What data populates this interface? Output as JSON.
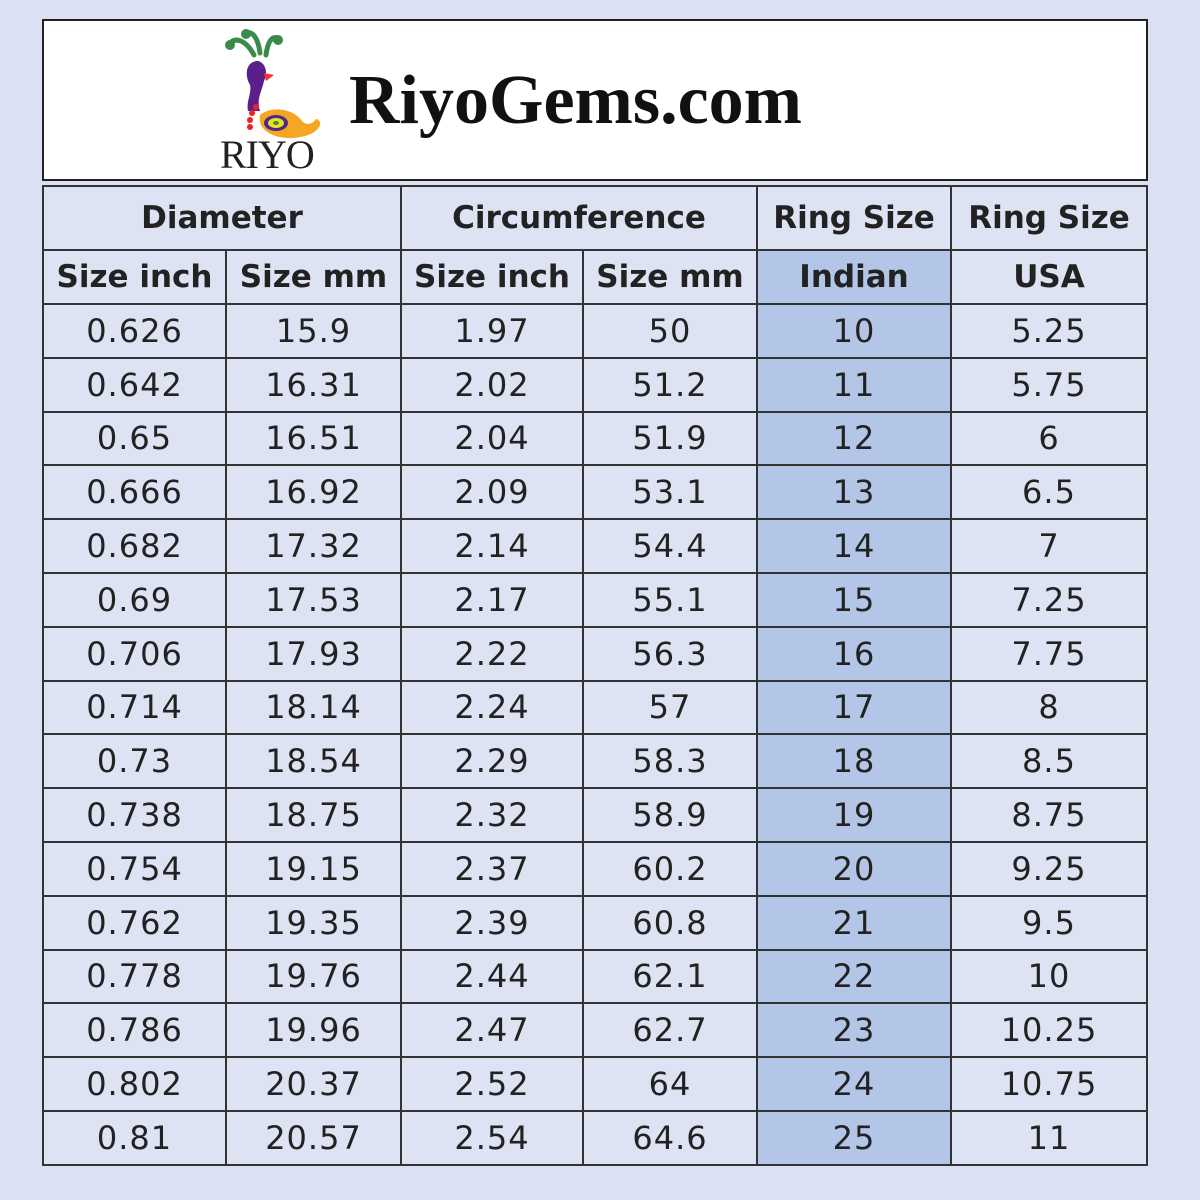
{
  "brand": {
    "site": "RiyoGems.com",
    "logo_text": "RIYO",
    "logo_mark": "®"
  },
  "colors": {
    "indian_column": "#b4c6e7",
    "cell_bg": "#dde3f3",
    "page_bg": "#dbe1f2"
  },
  "table": {
    "group_headers": [
      "Diameter",
      "Circumference",
      "Ring Size",
      "Ring Size"
    ],
    "sub_headers": [
      "Size inch",
      "Size mm",
      "Size inch",
      "Size mm",
      "Indian",
      "USA"
    ],
    "rows": [
      [
        "0.626",
        "15.9",
        "1.97",
        "50",
        "10",
        "5.25"
      ],
      [
        "0.642",
        "16.31",
        "2.02",
        "51.2",
        "11",
        "5.75"
      ],
      [
        "0.65",
        "16.51",
        "2.04",
        "51.9",
        "12",
        "6"
      ],
      [
        "0.666",
        "16.92",
        "2.09",
        "53.1",
        "13",
        "6.5"
      ],
      [
        "0.682",
        "17.32",
        "2.14",
        "54.4",
        "14",
        "7"
      ],
      [
        "0.69",
        "17.53",
        "2.17",
        "55.1",
        "15",
        "7.25"
      ],
      [
        "0.706",
        "17.93",
        "2.22",
        "56.3",
        "16",
        "7.75"
      ],
      [
        "0.714",
        "18.14",
        "2.24",
        "57",
        "17",
        "8"
      ],
      [
        "0.73",
        "18.54",
        "2.29",
        "58.3",
        "18",
        "8.5"
      ],
      [
        "0.738",
        "18.75",
        "2.32",
        "58.9",
        "19",
        "8.75"
      ],
      [
        "0.754",
        "19.15",
        "2.37",
        "60.2",
        "20",
        "9.25"
      ],
      [
        "0.762",
        "19.35",
        "2.39",
        "60.8",
        "21",
        "9.5"
      ],
      [
        "0.778",
        "19.76",
        "2.44",
        "62.1",
        "22",
        "10"
      ],
      [
        "0.786",
        "19.96",
        "2.47",
        "62.7",
        "23",
        "10.25"
      ],
      [
        "0.802",
        "20.37",
        "2.52",
        "64",
        "24",
        "10.75"
      ],
      [
        "0.81",
        "20.57",
        "2.54",
        "64.6",
        "25",
        "11"
      ]
    ]
  }
}
